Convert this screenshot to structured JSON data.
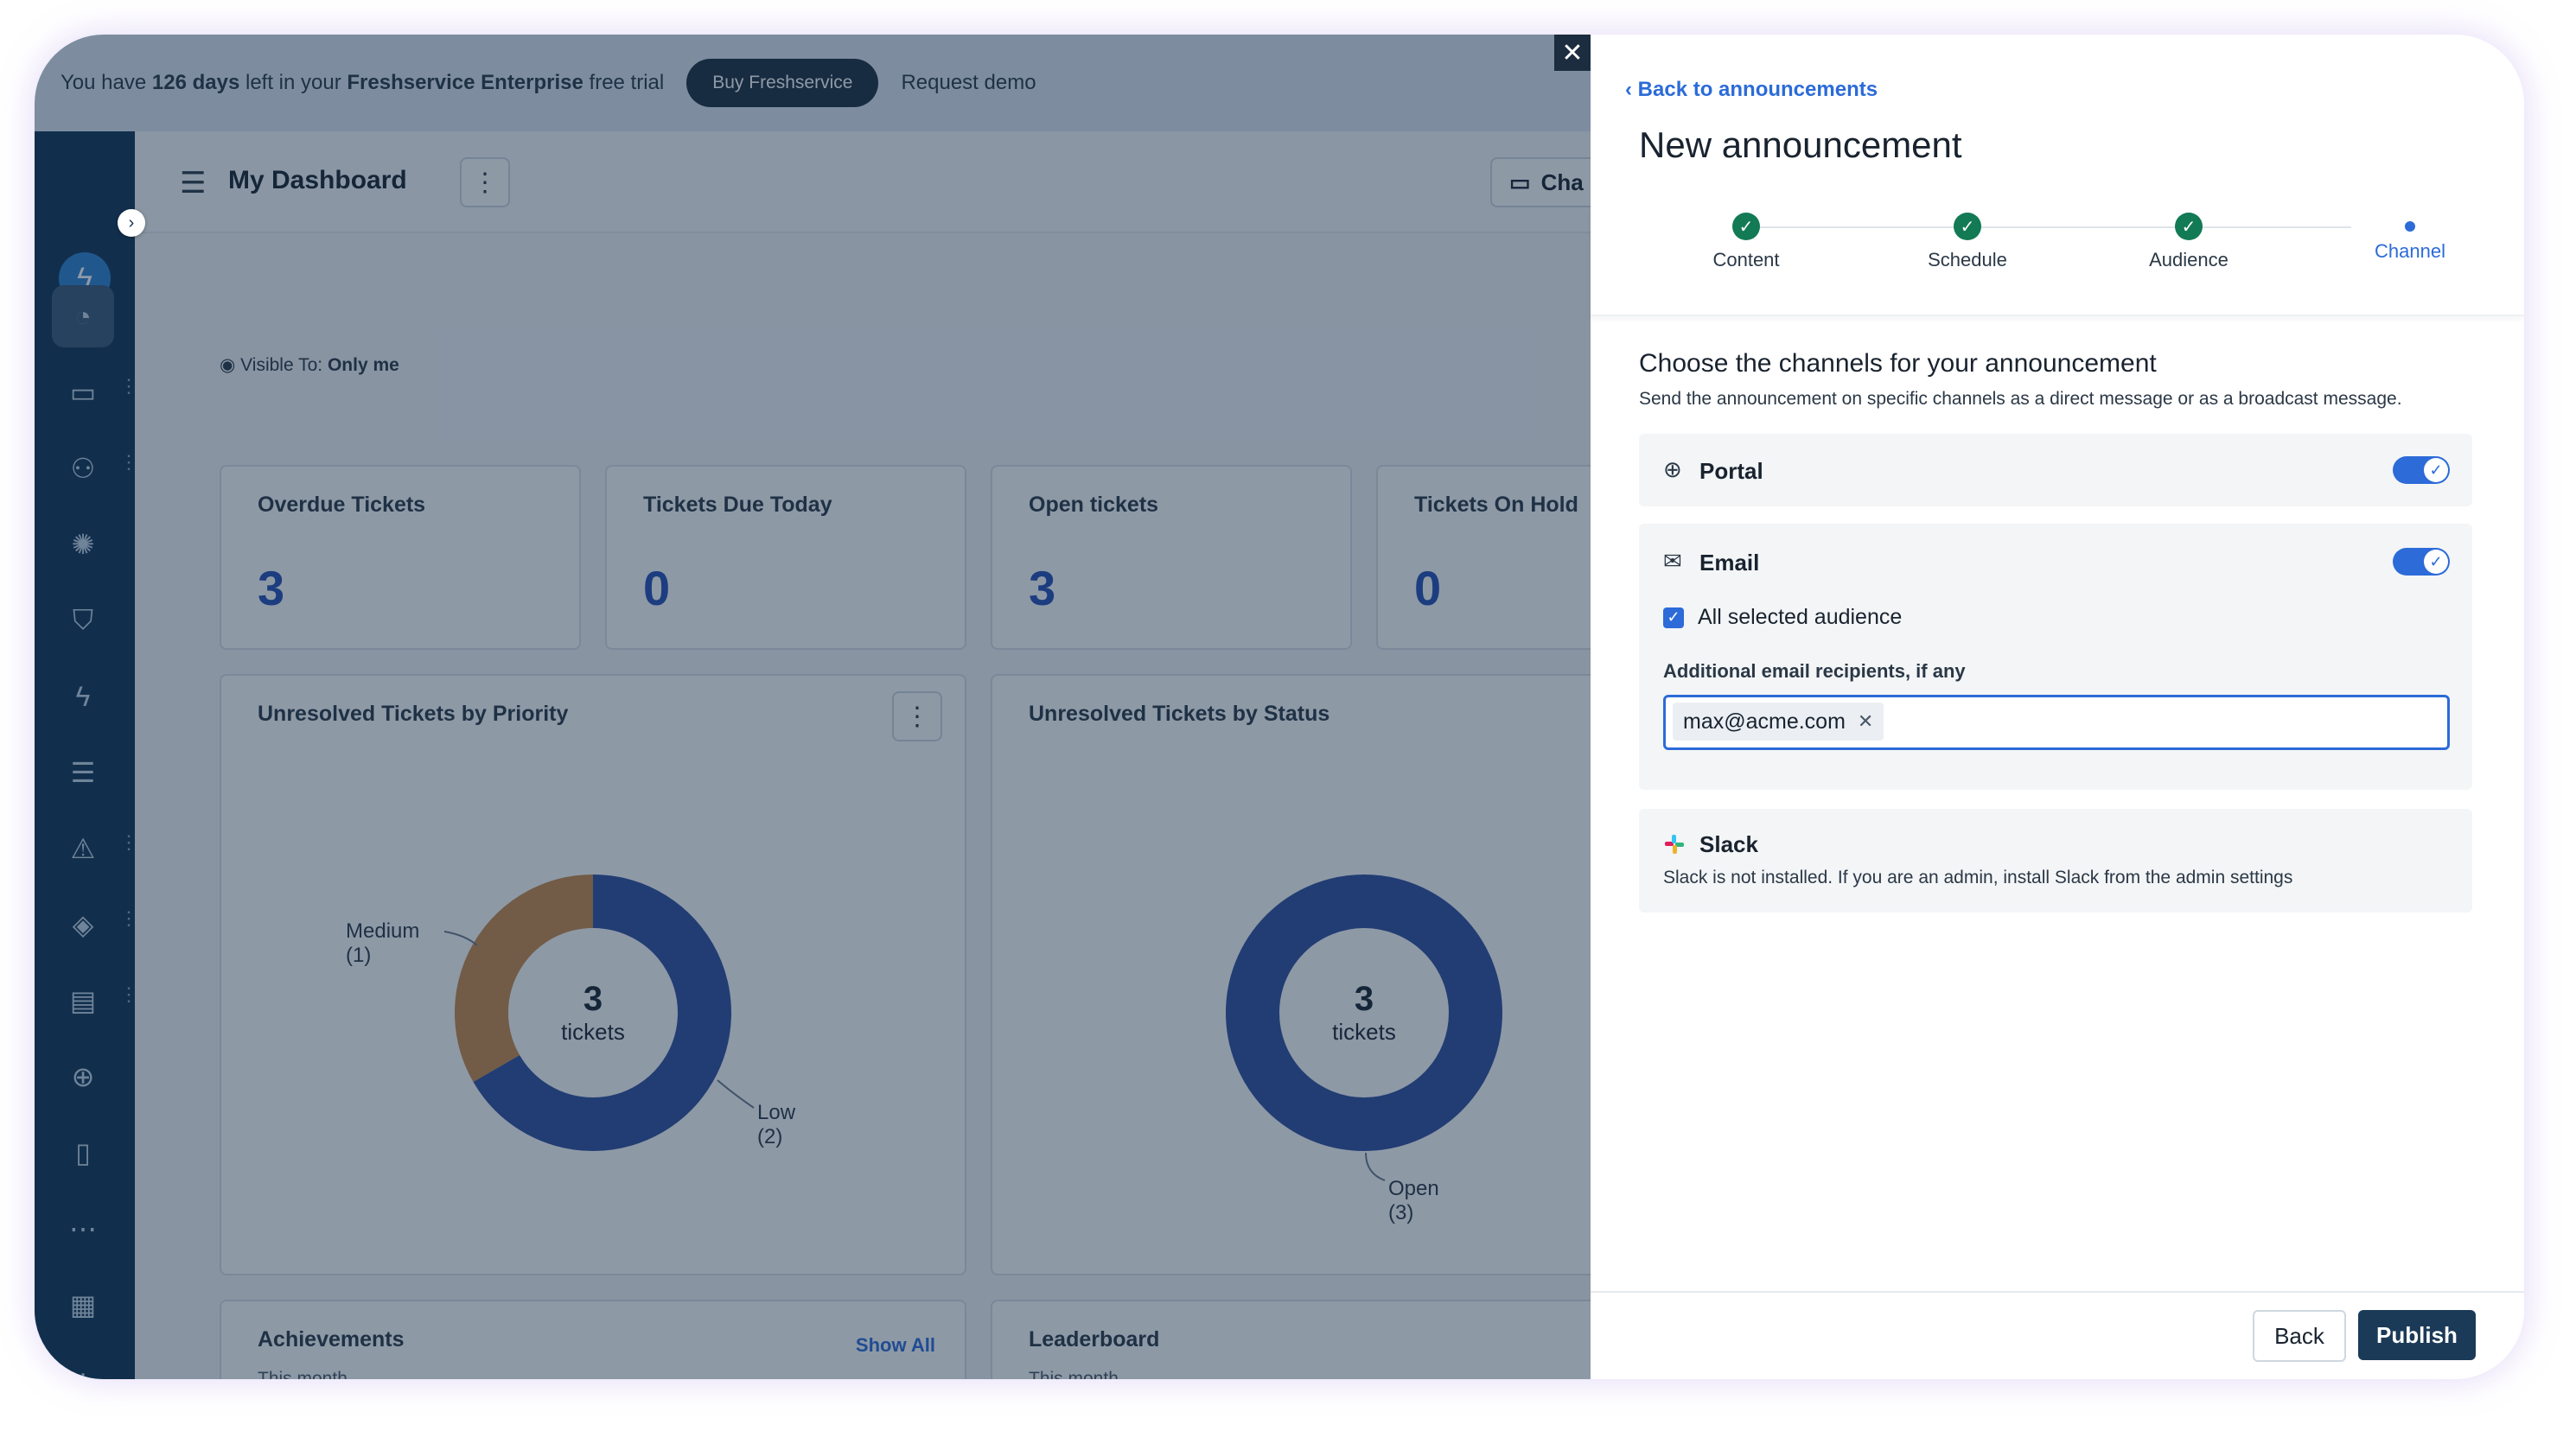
{
  "trial_banner": {
    "prefix": "You have",
    "days": "126 days",
    "middle": "left in your",
    "plan": "Freshservice Enterprise",
    "suffix": "free trial",
    "buy_label": "Buy Freshservice",
    "demo_label": "Request demo"
  },
  "header": {
    "title": "My Dashboard",
    "chat_label": "Cha"
  },
  "visibility": {
    "label": "Visible To:",
    "value": "Only me"
  },
  "metrics": [
    {
      "title": "Overdue Tickets",
      "value": "3"
    },
    {
      "title": "Tickets Due Today",
      "value": "0"
    },
    {
      "title": "Open tickets",
      "value": "3"
    },
    {
      "title": "Tickets On Hold",
      "value": "0"
    }
  ],
  "priority_panel": {
    "title": "Unresolved Tickets by Priority",
    "center_number": "3",
    "center_label": "tickets",
    "labels": [
      {
        "name": "Medium",
        "count": "(1)"
      },
      {
        "name": "Low",
        "count": "(2)"
      }
    ]
  },
  "status_panel": {
    "title": "Unresolved Tickets by Status",
    "center_number": "3",
    "center_label": "tickets",
    "labels": [
      {
        "name": "Open",
        "count": "(3)"
      }
    ]
  },
  "achievements": {
    "title": "Achievements",
    "subtitle": "This month",
    "show_all": "Show All"
  },
  "leaderboard": {
    "title": "Leaderboard",
    "subtitle": "This month"
  },
  "chart_data": [
    {
      "type": "pie",
      "title": "Unresolved Tickets by Priority",
      "categories": [
        "Low",
        "Medium"
      ],
      "values": [
        2,
        1
      ],
      "colors": [
        "#2f4f9e",
        "#c98a4a"
      ]
    },
    {
      "type": "pie",
      "title": "Unresolved Tickets by Status",
      "categories": [
        "Open"
      ],
      "values": [
        3
      ],
      "colors": [
        "#2f4f9e"
      ]
    }
  ],
  "drawer": {
    "back_link": "Back to announcements",
    "title": "New announcement",
    "steps": [
      {
        "label": "Content",
        "state": "done"
      },
      {
        "label": "Schedule",
        "state": "done"
      },
      {
        "label": "Audience",
        "state": "done"
      },
      {
        "label": "Channel",
        "state": "current"
      }
    ],
    "section_title": "Choose the channels for your announcement",
    "section_desc": "Send the announcement on specific channels as a direct message or as a broadcast message.",
    "portal": {
      "label": "Portal",
      "enabled": true
    },
    "email": {
      "label": "Email",
      "enabled": true,
      "checkbox_label": "All selected audience",
      "checkbox_checked": true,
      "field_label": "Additional email recipients, if any",
      "recipients": [
        "max@acme.com"
      ]
    },
    "slack": {
      "label": "Slack",
      "description": "Slack is not installed. If you are an admin, install Slack from the admin settings"
    },
    "back_button": "Back",
    "publish_button": "Publish"
  },
  "colors": {
    "accent": "#2c6bd8",
    "primary_dark": "#1b3a57",
    "step_done": "#127a55",
    "sidebar": "#113455"
  }
}
